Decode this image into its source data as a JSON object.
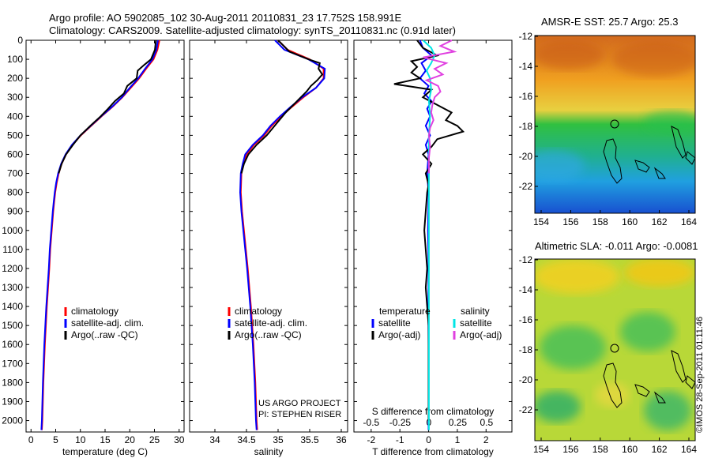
{
  "header": {
    "line1": "Argo profile: AO 5902085_102 30-Aug-2011 20110831_23 17.752S 158.991E",
    "line2": "Climatology: CARS2009. Satellite-adjusted climatology: synTS_20110831.nc (0.91d later)"
  },
  "depth_ticks": [
    "0",
    "100",
    "200",
    "300",
    "400",
    "500",
    "600",
    "700",
    "800",
    "900",
    "1000",
    "1100",
    "1200",
    "1300",
    "1400",
    "1500",
    "1600",
    "1700",
    "1800",
    "1900",
    "2000"
  ],
  "colors": {
    "climatology": "#ff0000",
    "satellite": "#0000ff",
    "argo": "#000000",
    "satellite_s": "#00e5e5",
    "argo_s": "#e040e0"
  },
  "legend": {
    "climatology": "climatology",
    "satellite_adj": "satellite-adj. clim.",
    "argo_raw": "Argo(..raw -QC)",
    "temperature": "temperature",
    "salinity": "salinity",
    "satellite": "satellite",
    "argo_adj": "Argo(-adj)"
  },
  "credits": {
    "project": "US ARGO PROJECT",
    "pi": "PI: STEPHEN RISER",
    "imos": "©IMOS 28-Sep-2011 01:11:46"
  },
  "maps": {
    "sst_title": "AMSR-E SST: 25.7 Argo: 25.3",
    "sla_title": "Altimetric SLA: -0.011 Argo: -0.0081",
    "x_ticks": [
      "154",
      "156",
      "158",
      "160",
      "162",
      "164"
    ],
    "y_ticks": [
      "-12",
      "-14",
      "-16",
      "-18",
      "-20",
      "-22"
    ]
  },
  "chart_data": [
    {
      "type": "line",
      "xlabel": "temperature (deg C)",
      "ylabel": "",
      "xlim": [
        -1,
        31
      ],
      "ylim": [
        2060,
        0
      ],
      "x_ticks": [
        "0",
        "5",
        "10",
        "15",
        "20",
        "25",
        "30"
      ],
      "y_inverted": true,
      "series": [
        {
          "name": "climatology",
          "color": "#ff0000",
          "depth": [
            0,
            50,
            100,
            150,
            200,
            250,
            300,
            350,
            400,
            450,
            500,
            550,
            600,
            650,
            700,
            750,
            800,
            850,
            900,
            1000,
            1100,
            1200,
            1400,
            1600,
            1800,
            2000,
            2050
          ],
          "values": [
            26,
            25.6,
            24.8,
            23.3,
            21.9,
            20.2,
            18.5,
            16.5,
            14.3,
            12.2,
            10.1,
            8.4,
            7.1,
            6.2,
            5.6,
            5.2,
            4.9,
            4.7,
            4.5,
            4.2,
            3.9,
            3.7,
            3.2,
            2.8,
            2.5,
            2.3,
            2.2
          ]
        },
        {
          "name": "satellite-adj. clim.",
          "color": "#0000ff",
          "depth": [
            0,
            50,
            100,
            150,
            200,
            250,
            300,
            350,
            400,
            450,
            500,
            550,
            600,
            650,
            700,
            750,
            800,
            850,
            900,
            1000,
            1100,
            1200,
            1400,
            1600,
            1800,
            2000,
            2050
          ],
          "values": [
            25.7,
            25.4,
            24.6,
            23.1,
            21.7,
            20,
            18.4,
            16.4,
            14.2,
            12.1,
            10,
            8.3,
            7,
            6.1,
            5.5,
            5.1,
            4.8,
            4.6,
            4.4,
            4.1,
            3.8,
            3.6,
            3.1,
            2.7,
            2.4,
            2.2,
            2.1
          ]
        },
        {
          "name": "Argo(..raw -QC)",
          "color": "#000000",
          "depth": [
            0,
            50,
            100,
            130,
            160,
            200,
            240,
            280,
            320,
            360,
            400,
            450,
            500,
            550,
            600,
            650,
            700
          ],
          "values": [
            25.3,
            25.1,
            24.3,
            22.9,
            21.6,
            21.4,
            19.5,
            18.8,
            17,
            15.6,
            14.1,
            12,
            10,
            8.5,
            7.1,
            6.2,
            5.6
          ]
        }
      ]
    },
    {
      "type": "line",
      "xlabel": "salinity",
      "ylabel": "",
      "xlim": [
        33.6,
        36.1
      ],
      "ylim": [
        2060,
        0
      ],
      "x_ticks": [
        "34",
        "34.5",
        "35",
        "35.5",
        "36"
      ],
      "y_inverted": true,
      "series": [
        {
          "name": "climatology",
          "color": "#ff0000",
          "depth": [
            0,
            50,
            100,
            150,
            200,
            250,
            300,
            350,
            400,
            450,
            500,
            550,
            600,
            650,
            700,
            800,
            900,
            1000,
            1200,
            1400,
            1600,
            1800,
            2000,
            2050
          ],
          "values": [
            35,
            35.15,
            35.5,
            35.72,
            35.72,
            35.6,
            35.4,
            35.22,
            35.05,
            34.9,
            34.78,
            34.62,
            34.5,
            34.45,
            34.42,
            34.41,
            34.43,
            34.46,
            34.52,
            34.57,
            34.61,
            34.64,
            34.66,
            34.67
          ]
        },
        {
          "name": "satellite-adj. clim.",
          "color": "#0000ff",
          "depth": [
            0,
            50,
            100,
            150,
            200,
            250,
            300,
            350,
            400,
            450,
            500,
            550,
            600,
            650,
            700,
            800,
            900,
            1000,
            1200,
            1400,
            1600,
            1800,
            2000,
            2050
          ],
          "values": [
            34.95,
            35.1,
            35.48,
            35.74,
            35.73,
            35.6,
            35.38,
            35.2,
            35.03,
            34.88,
            34.76,
            34.6,
            34.48,
            34.44,
            34.41,
            34.4,
            34.42,
            34.45,
            34.51,
            34.56,
            34.6,
            34.63,
            34.65,
            34.66
          ]
        },
        {
          "name": "Argo(..raw -QC)",
          "color": "#000000",
          "depth": [
            0,
            60,
            100,
            120,
            150,
            180,
            210,
            240,
            270,
            300,
            340,
            380,
            420,
            460,
            500,
            550,
            600,
            650,
            700
          ],
          "values": [
            35,
            35.18,
            35.48,
            35.66,
            35.64,
            35.7,
            35.62,
            35.52,
            35.45,
            35.36,
            35.24,
            35.12,
            35.02,
            34.92,
            34.82,
            34.66,
            34.53,
            34.46,
            34.42
          ]
        }
      ]
    },
    {
      "type": "line",
      "xlabel": "T difference from climatology",
      "title_inside": "S difference from climatology",
      "xlim": [
        -2.6,
        2.9
      ],
      "ylim": [
        2060,
        0
      ],
      "x_ticks": [
        "-2",
        "-1",
        "0",
        "1",
        "2"
      ],
      "top_ticks": [
        "-0.5",
        "-0.25",
        "0",
        "0.25",
        "0.5"
      ],
      "y_inverted": true,
      "series": [
        {
          "name": "temperature satellite",
          "color": "#0000ff",
          "depth": [
            0,
            40,
            80,
            120,
            160,
            200,
            240,
            280,
            320,
            360,
            400,
            450,
            500,
            550,
            600,
            700,
            800,
            1000,
            1200,
            1400,
            1600,
            1800,
            2000,
            2050
          ],
          "values": [
            -0.3,
            -0.2,
            0.1,
            -0.25,
            -0.1,
            -0.3,
            0,
            -0.15,
            0.1,
            -0.05,
            0.05,
            -0.1,
            0.05,
            -0.1,
            0,
            -0.05,
            0,
            -0.02,
            0,
            -0.01,
            0,
            0,
            0,
            0
          ]
        },
        {
          "name": "temperature Argo(-adj)",
          "color": "#000000",
          "depth": [
            0,
            40,
            80,
            110,
            140,
            170,
            200,
            230,
            260,
            300,
            340,
            380,
            420,
            450,
            480,
            520,
            560,
            600,
            650,
            700,
            760,
            800,
            900,
            1000,
            1100,
            1200,
            1300,
            1400,
            1500,
            1700,
            2000
          ],
          "values": [
            -0.4,
            -0.2,
            0.3,
            -0.6,
            -0.4,
            -0.6,
            -0.3,
            -1.2,
            0.1,
            -0.2,
            0.3,
            0.8,
            0.6,
            1.0,
            1.2,
            0.3,
            0.1,
            -0.2,
            0.1,
            -0.1,
            0,
            -0.05,
            -0.1,
            -0.15,
            -0.1,
            -0.05,
            -0.1,
            -0.05,
            0,
            0,
            0
          ]
        },
        {
          "name": "salinity satellite",
          "color": "#00e5e5",
          "depth": [
            0,
            40,
            80,
            120,
            160,
            200,
            260,
            320,
            400,
            500,
            600,
            800,
            1000,
            1400,
            1800,
            2050
          ],
          "values": [
            -0.05,
            0.02,
            0.05,
            0.02,
            -0.02,
            0.01,
            0.02,
            0,
            0.01,
            0,
            0,
            0,
            0,
            0,
            0,
            0
          ]
        },
        {
          "name": "salinity Argo(-adj)",
          "color": "#e040e0",
          "depth": [
            0,
            30,
            60,
            90,
            120,
            150,
            180,
            210,
            240,
            270,
            300,
            340,
            380,
            420,
            460,
            500,
            560,
            620,
            700
          ],
          "values": [
            0.2,
            0.1,
            0.22,
            -0.05,
            0.15,
            0.05,
            0.12,
            -0.02,
            0.08,
            0.1,
            0.05,
            0.03,
            0.02,
            0.04,
            0.01,
            0,
            0.01,
            0,
            0
          ]
        }
      ]
    }
  ]
}
